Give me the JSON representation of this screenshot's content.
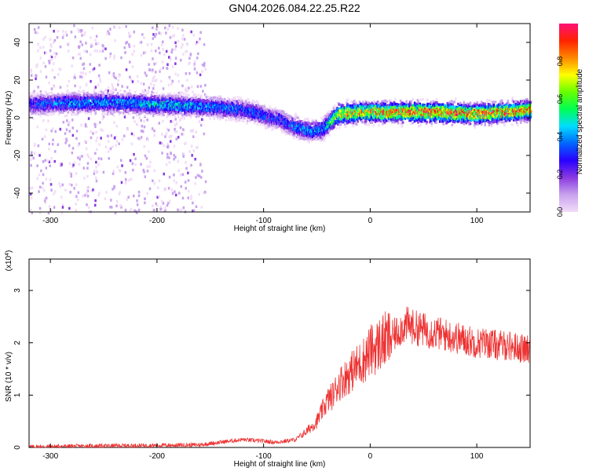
{
  "title": "GN04.2026.084.22.25.R22",
  "colors": {
    "snr_line": "#ee3333",
    "axis": "#000000",
    "colormap": [
      "#f2dcf8",
      "#c9a3ee",
      "#8a3ae0",
      "#2a00ff",
      "#0066ff",
      "#00ddff",
      "#00ff55",
      "#66ff00",
      "#ffff00",
      "#ff8800",
      "#ff2200",
      "#ff1177"
    ]
  },
  "chart_data": [
    {
      "type": "heatmap",
      "name": "spectrogram",
      "xlabel": "Height of straight line (km)",
      "ylabel": "Frequency (Hz)",
      "xlim": [
        -320,
        150
      ],
      "ylim": [
        -50,
        50
      ],
      "xticks": [
        "-300",
        "-200",
        "-100",
        "0",
        "100"
      ],
      "xtick_values": [
        -300,
        -200,
        -100,
        0,
        100
      ],
      "yticks": [
        "40",
        "20",
        "0",
        "-20",
        "-40"
      ],
      "ytick_values": [
        40,
        20,
        0,
        -20,
        -40
      ],
      "colorbar": {
        "label": "Normalized spectral amplitude",
        "range": [
          0,
          1
        ],
        "ticks": [
          "0.0",
          "0.2",
          "0.4",
          "0.6",
          "0.8"
        ],
        "tick_values": [
          0.0,
          0.2,
          0.4,
          0.6,
          0.8
        ]
      },
      "ridge": {
        "x": [
          -320,
          -280,
          -240,
          -200,
          -160,
          -130,
          -110,
          -95,
          -85,
          -75,
          -65,
          -55,
          -45,
          -38,
          -30,
          -10,
          20,
          60,
          100,
          150
        ],
        "frequency": [
          7,
          8,
          8,
          7,
          6,
          5,
          3,
          0,
          -1,
          -4,
          -6,
          -7,
          -6,
          -2,
          2,
          3,
          3,
          3,
          2,
          4
        ],
        "amplitude": [
          0.35,
          0.45,
          0.45,
          0.5,
          0.45,
          0.4,
          0.4,
          0.35,
          0.35,
          0.4,
          0.45,
          0.45,
          0.45,
          0.6,
          0.8,
          0.85,
          0.9,
          0.95,
          0.9,
          0.85
        ]
      },
      "noise_region_x": [
        -320,
        -155
      ]
    },
    {
      "type": "line",
      "name": "snr",
      "xlabel": "Height of straight line (km)",
      "ylabel": "SNR (10 * v/v)",
      "y_multiplier": "(x10^4)",
      "xlim": [
        -320,
        150
      ],
      "ylim": [
        0,
        3.6
      ],
      "xticks": [
        "-300",
        "-200",
        "-100",
        "0",
        "100"
      ],
      "xtick_values": [
        -300,
        -200,
        -100,
        0,
        100
      ],
      "yticks": [
        "0",
        "1",
        "2",
        "3"
      ],
      "ytick_values": [
        0,
        1,
        2,
        3
      ],
      "series": [
        {
          "x": [
            -320,
            -300,
            -250,
            -200,
            -160,
            -140,
            -120,
            -100,
            -90,
            -80,
            -70,
            -60,
            -50,
            -45,
            -40,
            -35,
            -30,
            -25,
            -20,
            -15,
            -10,
            -5,
            0,
            5,
            10,
            15,
            20,
            25,
            30,
            35,
            40,
            50,
            60,
            70,
            80,
            90,
            100,
            110,
            120,
            130,
            140,
            150
          ],
          "values": [
            0.01,
            0.02,
            0.03,
            0.04,
            0.05,
            0.1,
            0.15,
            0.12,
            0.1,
            0.12,
            0.15,
            0.3,
            0.5,
            0.7,
            0.9,
            1.0,
            1.2,
            1.3,
            1.4,
            1.5,
            1.6,
            1.7,
            1.85,
            1.9,
            2.0,
            2.05,
            2.1,
            2.2,
            2.3,
            2.35,
            2.3,
            2.25,
            2.2,
            2.15,
            2.1,
            2.05,
            2.0,
            2.0,
            1.95,
            1.95,
            1.9,
            1.85
          ]
        }
      ]
    }
  ]
}
